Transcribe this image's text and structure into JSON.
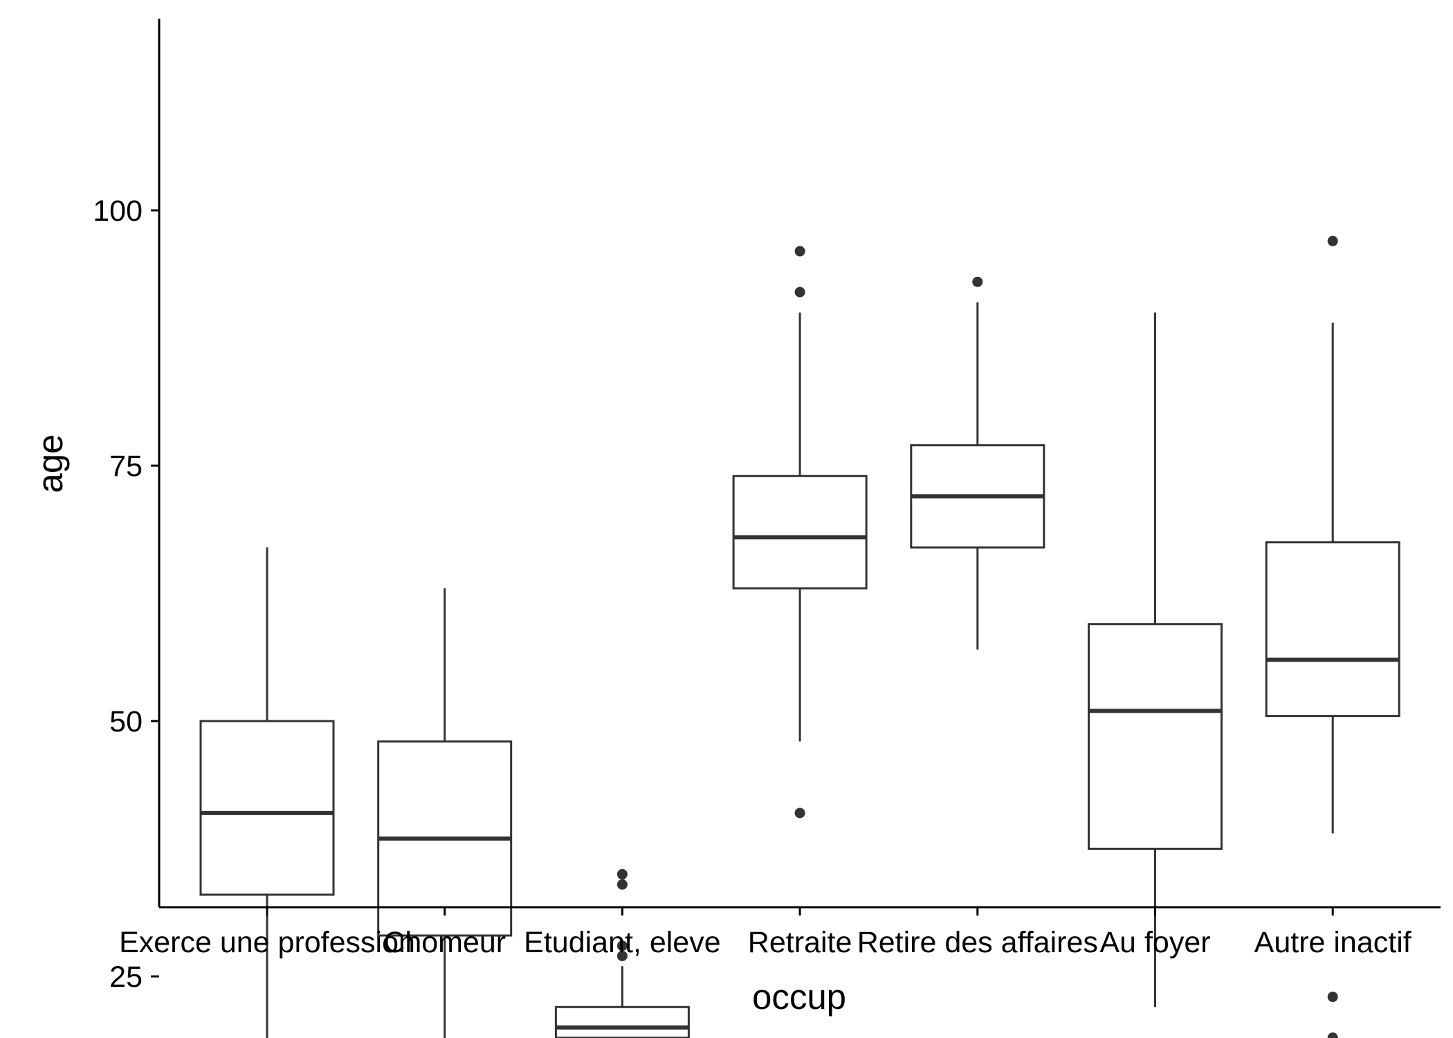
{
  "chart_data": {
    "type": "boxplot",
    "xlabel": "occup",
    "ylabel": "age",
    "ylim": [
      14,
      101.5
    ],
    "yticks": [
      25,
      50,
      75,
      100
    ],
    "grid": false,
    "legend": "none",
    "colors": {
      "box_stroke": "#333333",
      "box_fill": "#ffffff",
      "axis": "#000000"
    },
    "categories": [
      "Exerce une profession",
      "Chomeur",
      "Etudiant, eleve",
      "Retraite",
      "Retire des affaires",
      "Au foyer",
      "Autre inactif"
    ],
    "boxes": [
      {
        "whisker_low": 18,
        "q1": 33,
        "median": 41,
        "q3": 50,
        "whisker_high": 67,
        "outliers": []
      },
      {
        "whisker_low": 18,
        "q1": 29,
        "median": 38.5,
        "q3": 48,
        "whisker_high": 63,
        "outliers": []
      },
      {
        "whisker_low": 18,
        "q1": 19,
        "median": 20,
        "q3": 22,
        "whisker_high": 26,
        "outliers": [
          27,
          28,
          34,
          35
        ]
      },
      {
        "whisker_low": 48,
        "q1": 63,
        "median": 68,
        "q3": 74,
        "whisker_high": 90,
        "outliers": [
          41,
          92,
          96
        ]
      },
      {
        "whisker_low": 57,
        "q1": 67,
        "median": 72,
        "q3": 77,
        "whisker_high": 91,
        "outliers": [
          93
        ]
      },
      {
        "whisker_low": 22,
        "q1": 37.5,
        "median": 51,
        "q3": 59.5,
        "whisker_high": 90,
        "outliers": []
      },
      {
        "whisker_low": 39,
        "q1": 50.5,
        "median": 56,
        "q3": 67.5,
        "whisker_high": 89,
        "outliers": [
          19,
          23,
          97
        ]
      }
    ]
  }
}
